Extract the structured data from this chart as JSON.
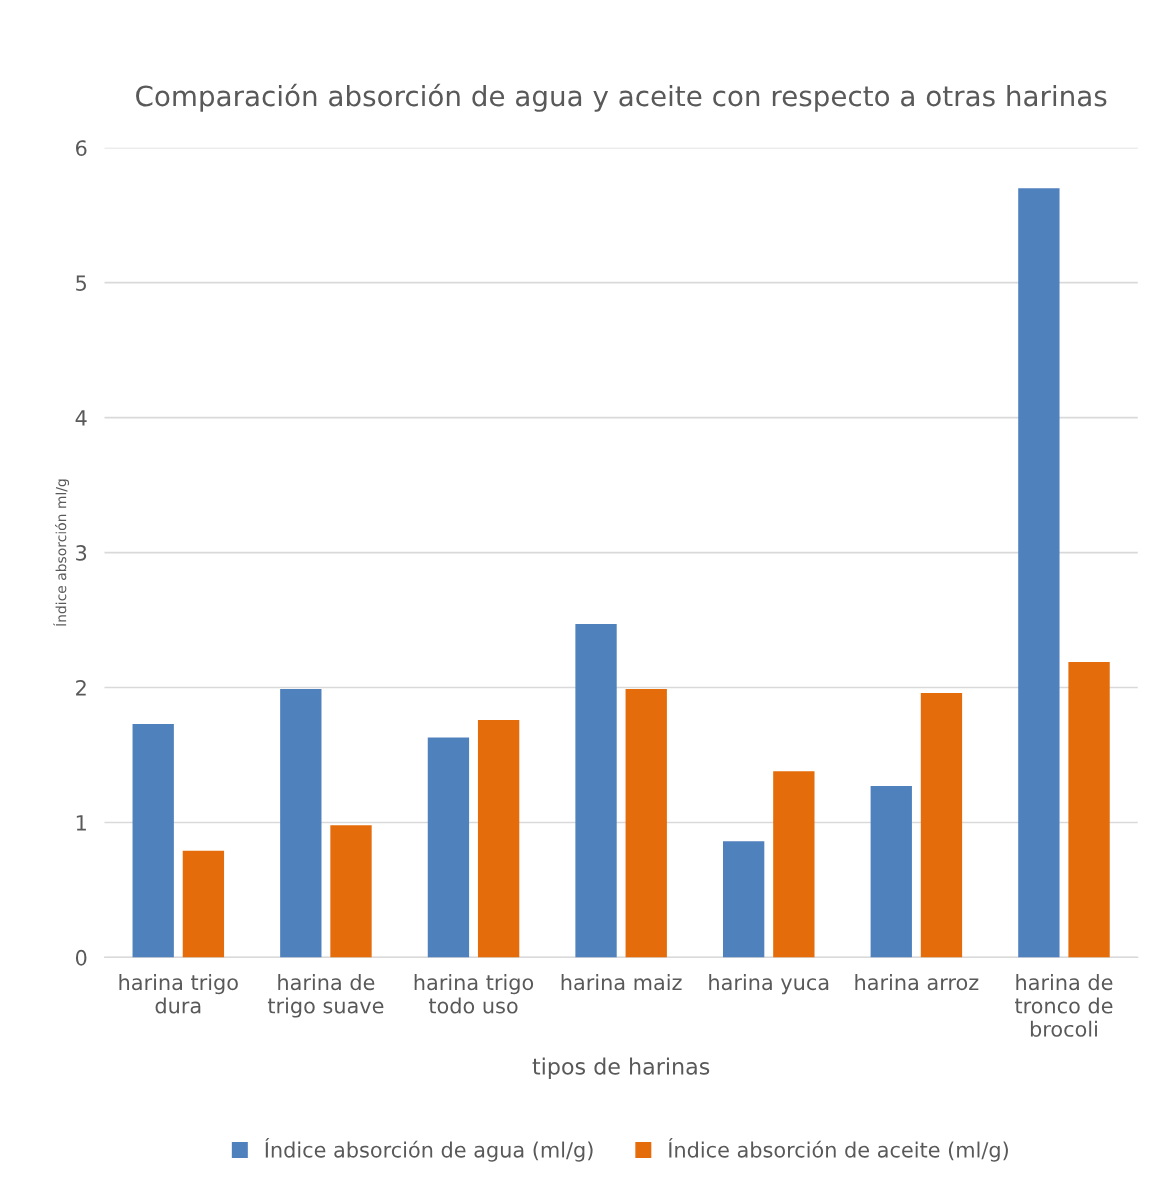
{
  "chart_data": {
    "type": "bar",
    "title": "Comparación absorción de agua y aceite con respecto a otras harinas",
    "xlabel": "tipos de harinas",
    "ylabel": "Índice absorción ml/g",
    "categories": [
      "harina trigo dura",
      "harina de trigo suave",
      "harina trigo todo uso",
      "harina maiz",
      "harina yuca",
      "harina arroz",
      "harina de tronco de brocoli"
    ],
    "series": [
      {
        "name": "Índice absorción de agua (ml/g)",
        "color": "#4f81bd",
        "values": [
          1.73,
          1.99,
          1.63,
          2.47,
          0.86,
          1.27,
          5.7
        ]
      },
      {
        "name": "Índice absorción de aceite (ml/g)",
        "color": "#e46c0a",
        "values": [
          0.79,
          0.98,
          1.76,
          1.99,
          1.38,
          1.96,
          2.19
        ]
      }
    ],
    "ylim": [
      0,
      6
    ],
    "yticks": [
      0,
      1,
      2,
      3,
      4,
      5,
      6
    ],
    "grid": "y",
    "legend": "bottom"
  }
}
